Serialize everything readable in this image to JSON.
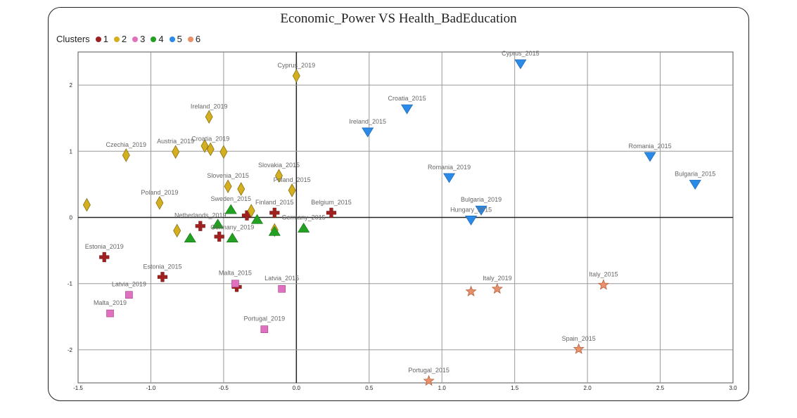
{
  "chart_data": {
    "type": "scatter",
    "title": "Economic_Power VS Health_BadEducation",
    "xlabel": "",
    "ylabel": "",
    "xlim": [
      -1.5,
      3.0
    ],
    "ylim": [
      -2.5,
      2.5
    ],
    "x_ticks": [
      "-1.5",
      "-1.0",
      "-0.5",
      "0.0",
      "0.5",
      "1.0",
      "1.5",
      "2.0",
      "2.5",
      "3.0"
    ],
    "y_ticks": [
      "2",
      "1",
      "0",
      "-1",
      "-2"
    ],
    "grid": true,
    "legend_title": "Clusters",
    "legend_position": "top-left",
    "series": [
      {
        "name": "1",
        "color": "#a01f1f",
        "marker": "cross",
        "points": [
          {
            "label": "Belgium_2015",
            "x": 0.24,
            "y": 0.07
          },
          {
            "label": "Finland_2015",
            "x": -0.15,
            "y": 0.07
          },
          {
            "label": "",
            "x": -0.34,
            "y": 0.03
          },
          {
            "label": "Netherlands_2019",
            "x": -0.66,
            "y": -0.13
          },
          {
            "label": "",
            "x": -0.53,
            "y": -0.29
          },
          {
            "label": "Estonia_2019",
            "x": -1.32,
            "y": -0.6
          },
          {
            "label": "Estonia_2015",
            "x": -0.92,
            "y": -0.9
          },
          {
            "label": "",
            "x": -0.41,
            "y": -1.05
          }
        ]
      },
      {
        "name": "2",
        "color": "#d4b020",
        "marker": "diamond",
        "points": [
          {
            "label": "Cyprus_2019",
            "x": 0.0,
            "y": 2.14
          },
          {
            "label": "Ireland_2019",
            "x": -0.6,
            "y": 1.52
          },
          {
            "label": "Czechia_2019",
            "x": -1.17,
            "y": 0.94
          },
          {
            "label": "Austria_2019",
            "x": -0.83,
            "y": 0.99
          },
          {
            "label": "",
            "x": -0.63,
            "y": 1.08
          },
          {
            "label": "Croatia_2019",
            "x": -0.59,
            "y": 1.03
          },
          {
            "label": "",
            "x": -0.5,
            "y": 0.99
          },
          {
            "label": "Slovakia_2015",
            "x": -0.12,
            "y": 0.63
          },
          {
            "label": "Slovenia_2015",
            "x": -0.47,
            "y": 0.47
          },
          {
            "label": "",
            "x": -0.38,
            "y": 0.43
          },
          {
            "label": "Poland_2015",
            "x": -0.03,
            "y": 0.41
          },
          {
            "label": "Poland_2019",
            "x": -0.94,
            "y": 0.22
          },
          {
            "label": "",
            "x": -1.44,
            "y": 0.19
          },
          {
            "label": "",
            "x": -0.31,
            "y": 0.1
          },
          {
            "label": "",
            "x": -0.82,
            "y": -0.2
          },
          {
            "label": "",
            "x": -0.15,
            "y": -0.19
          }
        ]
      },
      {
        "name": "3",
        "color": "#e070c0",
        "marker": "square",
        "points": [
          {
            "label": "Malta_2015",
            "x": -0.42,
            "y": -1.0
          },
          {
            "label": "Latvia_2015",
            "x": -0.1,
            "y": -1.08
          },
          {
            "label": "Latvia_2019",
            "x": -1.15,
            "y": -1.17
          },
          {
            "label": "Malta_2019",
            "x": -1.28,
            "y": -1.45
          },
          {
            "label": "Portugal_2019",
            "x": -0.22,
            "y": -1.69
          }
        ]
      },
      {
        "name": "4",
        "color": "#22a022",
        "marker": "triangle-up",
        "points": [
          {
            "label": "Sweden_2015",
            "x": -0.45,
            "y": 0.12
          },
          {
            "label": "",
            "x": -0.27,
            "y": -0.03
          },
          {
            "label": "",
            "x": -0.54,
            "y": -0.1
          },
          {
            "label": "Germany_2015",
            "x": 0.05,
            "y": -0.16
          },
          {
            "label": "",
            "x": -0.15,
            "y": -0.21
          },
          {
            "label": "Germany_2019",
            "x": -0.44,
            "y": -0.31
          },
          {
            "label": "",
            "x": -0.73,
            "y": -0.31
          }
        ]
      },
      {
        "name": "5",
        "color": "#2a8ae8",
        "marker": "triangle-down",
        "points": [
          {
            "label": "Cyprus_2015",
            "x": 1.54,
            "y": 2.32
          },
          {
            "label": "Croatia_2015",
            "x": 0.76,
            "y": 1.64
          },
          {
            "label": "Ireland_2015",
            "x": 0.49,
            "y": 1.29
          },
          {
            "label": "Romania_2015",
            "x": 2.43,
            "y": 0.92
          },
          {
            "label": "Romania_2019",
            "x": 1.05,
            "y": 0.6
          },
          {
            "label": "Bulgaria_2015",
            "x": 2.74,
            "y": 0.5
          },
          {
            "label": "Bulgaria_2019",
            "x": 1.27,
            "y": 0.11
          },
          {
            "label": "Hungary_2015",
            "x": 1.2,
            "y": -0.04
          }
        ]
      },
      {
        "name": "6",
        "color": "#e8906a",
        "marker": "star",
        "points": [
          {
            "label": "Italy_2015",
            "x": 2.11,
            "y": -1.02
          },
          {
            "label": "Italy_2019",
            "x": 1.38,
            "y": -1.08
          },
          {
            "label": "",
            "x": 1.2,
            "y": -1.12
          },
          {
            "label": "Spain_2015",
            "x": 1.94,
            "y": -1.99
          },
          {
            "label": "Portugal_2015",
            "x": 0.91,
            "y": -2.47
          }
        ]
      }
    ]
  }
}
